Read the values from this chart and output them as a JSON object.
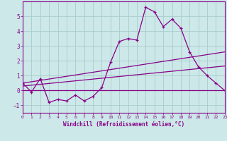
{
  "xlabel": "Windchill (Refroidissement éolien,°C)",
  "xlim": [
    0,
    23
  ],
  "ylim": [
    -1.5,
    6.0
  ],
  "yticks": [
    -1,
    0,
    1,
    2,
    3,
    4,
    5
  ],
  "xticks": [
    0,
    1,
    2,
    3,
    4,
    5,
    6,
    7,
    8,
    9,
    10,
    11,
    12,
    13,
    14,
    15,
    16,
    17,
    18,
    19,
    20,
    21,
    22,
    23
  ],
  "bg_color": "#cce8e8",
  "grid_color": "#aacccc",
  "line_color": "#880088",
  "line1_x": [
    0,
    1,
    2,
    3,
    4,
    5,
    6,
    7,
    8,
    9,
    10,
    11,
    12,
    13,
    14,
    15,
    16,
    17,
    18,
    19,
    20,
    21,
    22,
    23
  ],
  "line1_y": [
    0.5,
    -0.1,
    0.8,
    -0.8,
    -0.6,
    -0.7,
    -0.3,
    -0.7,
    -0.4,
    0.2,
    1.9,
    3.3,
    3.5,
    3.4,
    5.6,
    5.3,
    4.3,
    4.8,
    4.2,
    2.6,
    1.6,
    1.0,
    0.5,
    0.0
  ],
  "line2_x": [
    0,
    23
  ],
  "line2_y": [
    0.0,
    0.0
  ],
  "line3_x": [
    0,
    23
  ],
  "line3_y": [
    0.5,
    2.6
  ],
  "line4_x": [
    0,
    23
  ],
  "line4_y": [
    0.3,
    1.65
  ]
}
